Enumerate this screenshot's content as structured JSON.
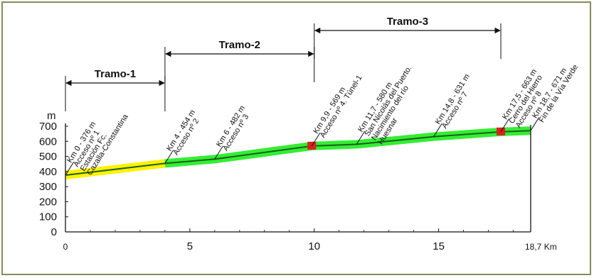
{
  "chart_data": {
    "type": "line",
    "y_unit_label": "m",
    "x_unit_label": "Km",
    "xlim": [
      0,
      18.7
    ],
    "ylim": [
      0,
      700
    ],
    "y_ticks": [
      0,
      100,
      200,
      300,
      400,
      500,
      600,
      700
    ],
    "x_ticks": [
      {
        "value": 0,
        "label": "0"
      },
      {
        "value": 5,
        "label": "5"
      },
      {
        "value": 10,
        "label": "10"
      },
      {
        "value": 15,
        "label": "15"
      },
      {
        "value": 18.7,
        "label": "18,7 Km"
      }
    ],
    "profile": {
      "x": [
        0,
        4,
        6,
        9.9,
        11.7,
        14.8,
        17.5,
        18.7
      ],
      "y": [
        376,
        454,
        482,
        569,
        580,
        631,
        663,
        671
      ]
    },
    "highlight": [
      {
        "from": 0,
        "to": 4,
        "color": "#fff200"
      },
      {
        "from": 4,
        "to": 18.7,
        "color": "#33ee33"
      }
    ],
    "line_color": "#1a5e1a",
    "marker_color": "#dd1f1f",
    "markers": [
      9.9,
      17.5
    ],
    "sections": [
      {
        "name": "Tramo-1",
        "from": 0,
        "to": 4
      },
      {
        "name": "Tramo-2",
        "from": 4,
        "to": 10
      },
      {
        "name": "Tramo-3",
        "from": 10,
        "to": 17.5
      }
    ],
    "annotations": [
      {
        "km": 0,
        "lines": [
          "Km 0 - 376 m",
          "Acceso nº 1",
          "Estación Fc.",
          "Cazalla-Constantina"
        ]
      },
      {
        "km": 4,
        "lines": [
          "Km 4 - 454 m",
          "Acceso nº 2"
        ]
      },
      {
        "km": 6,
        "lines": [
          "Km 6 - 482 m",
          "Acceso nº 3"
        ]
      },
      {
        "km": 9.9,
        "lines": [
          "Km 9,9 - 569 m",
          "Acceso nº 4. Túnel-1"
        ]
      },
      {
        "km": 11.7,
        "lines": [
          "Km 11,7 - 580 m",
          "San Nicolás del Puerto.",
          "Nacimiento del río",
          "Huesnar"
        ]
      },
      {
        "km": 14.8,
        "lines": [
          "Km 14,8 - 631 m",
          "Acceso nº 7"
        ]
      },
      {
        "km": 17.5,
        "lines": [
          "Km 17,5 - 663 m",
          "Cerro del Hierro",
          "Acceso nº 8"
        ]
      },
      {
        "km": 18.7,
        "lines": [
          "Km 18,7 - 671 m",
          "Fin de la Vía Verde"
        ]
      }
    ]
  }
}
